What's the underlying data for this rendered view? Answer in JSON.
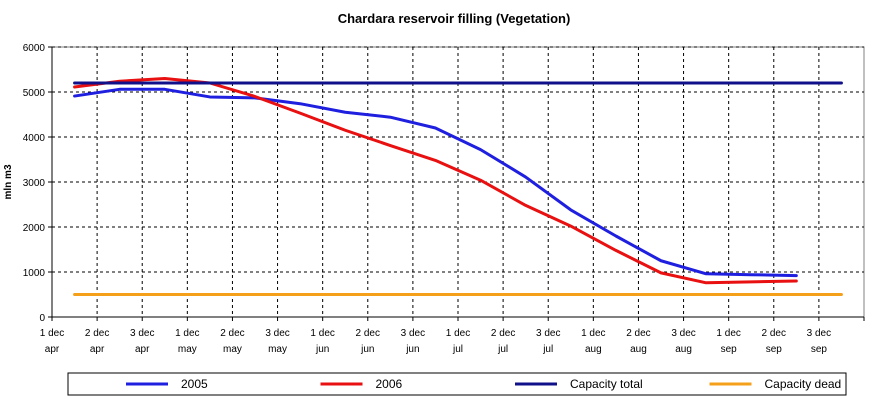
{
  "chart_data": {
    "type": "line",
    "title": "Chardara reservoir filling  (Vegetation)",
    "xlabel": "",
    "ylabel": "mln m3",
    "ylim": [
      0,
      6000
    ],
    "yticks": [
      0,
      1000,
      2000,
      3000,
      4000,
      5000,
      6000
    ],
    "grid": true,
    "legend_position": "bottom",
    "categories": [
      [
        "1 dec",
        "apr"
      ],
      [
        "2 dec",
        "apr"
      ],
      [
        "3 dec",
        "apr"
      ],
      [
        "1 dec",
        "may"
      ],
      [
        "2 dec",
        "may"
      ],
      [
        "3 dec",
        "may"
      ],
      [
        "1 dec",
        "jun"
      ],
      [
        "2 dec",
        "jun"
      ],
      [
        "3 dec",
        "jun"
      ],
      [
        "1 dec",
        "jul"
      ],
      [
        "2 dec",
        "jul"
      ],
      [
        "3 dec",
        "jul"
      ],
      [
        "1 dec",
        "aug"
      ],
      [
        "2 dec",
        "aug"
      ],
      [
        "3 dec",
        "aug"
      ],
      [
        "1 dec",
        "sep"
      ],
      [
        "2 dec",
        "sep"
      ],
      [
        "3 dec",
        "sep"
      ]
    ],
    "series": [
      {
        "name": "2005",
        "color": "#1f1fe0",
        "values": [
          4910,
          5060,
          5060,
          4890,
          4870,
          4740,
          4550,
          4440,
          4200,
          3720,
          3110,
          2380,
          1800,
          1250,
          960,
          940,
          920,
          null
        ]
      },
      {
        "name": "2006",
        "color": "#e81010",
        "values": [
          5110,
          5240,
          5300,
          5200,
          4900,
          4530,
          4150,
          3810,
          3480,
          3040,
          2480,
          2020,
          1480,
          980,
          760,
          780,
          800,
          null
        ]
      },
      {
        "name": "Capacity total",
        "color": "#10108a",
        "values": [
          5200,
          5200,
          5200,
          5200,
          5200,
          5200,
          5200,
          5200,
          5200,
          5200,
          5200,
          5200,
          5200,
          5200,
          5200,
          5200,
          5200,
          5200
        ]
      },
      {
        "name": "Capacity dead",
        "color": "#f5a01a",
        "values": [
          500,
          500,
          500,
          500,
          500,
          500,
          500,
          500,
          500,
          500,
          500,
          500,
          500,
          500,
          500,
          500,
          500,
          500
        ]
      }
    ]
  }
}
